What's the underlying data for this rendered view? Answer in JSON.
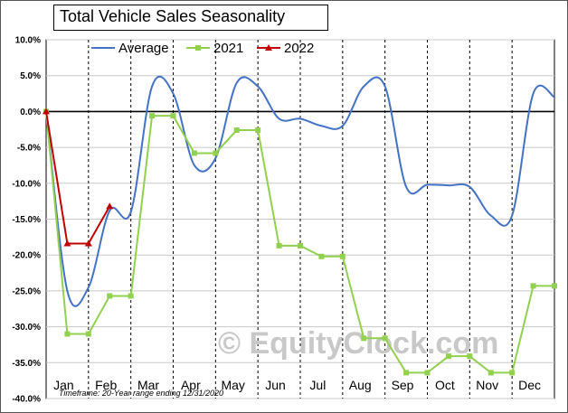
{
  "window": {
    "title": "Total Vehicle Sales Seasonality"
  },
  "chart_data": {
    "type": "line",
    "title": "Total Vehicle Sales Seasonality",
    "ylim": [
      -40,
      10
    ],
    "y_ticks": [
      "10.0%",
      "5.0%",
      "0.0%",
      "-5.0%",
      "-10.0%",
      "-15.0%",
      "-20.0%",
      "-25.0%",
      "-30.0%",
      "-35.0%",
      "-40.0%"
    ],
    "y_tick_values": [
      10,
      5,
      0,
      -5,
      -10,
      -15,
      -20,
      -25,
      -30,
      -35,
      -40
    ],
    "x_tick_labels": [
      "Jan",
      "Feb",
      "Mar",
      "Apr",
      "May",
      "Jun",
      "Jul",
      "Aug",
      "Sep",
      "Oct",
      "Nov",
      "Dec"
    ],
    "x_range": [
      0,
      12
    ],
    "gridlines": "vertical dashed at month boundaries, horizontal solid",
    "legend": "top",
    "series": [
      {
        "name": "Average",
        "color": "#4472c4",
        "smooth": true,
        "points": [
          [
            0.0,
            0.0
          ],
          [
            0.5,
            -25.0
          ],
          [
            1.0,
            -24.5
          ],
          [
            1.5,
            -13.8
          ],
          [
            2.0,
            -14.0
          ],
          [
            2.5,
            3.5
          ],
          [
            3.0,
            2.5
          ],
          [
            3.5,
            -7.5
          ],
          [
            4.0,
            -6.5
          ],
          [
            4.5,
            4.0
          ],
          [
            5.0,
            3.5
          ],
          [
            5.5,
            -1.0
          ],
          [
            6.0,
            -1.0
          ],
          [
            6.5,
            -2.0
          ],
          [
            7.0,
            -2.0
          ],
          [
            7.5,
            3.5
          ],
          [
            8.0,
            3.5
          ],
          [
            8.5,
            -10.5
          ],
          [
            9.0,
            -10.2
          ],
          [
            9.5,
            -10.3
          ],
          [
            10.0,
            -10.5
          ],
          [
            10.5,
            -14.5
          ],
          [
            11.0,
            -14.5
          ],
          [
            11.5,
            2.5
          ],
          [
            12.0,
            2.0
          ]
        ]
      },
      {
        "name": "2021",
        "color": "#92d050",
        "marker": "square",
        "points": [
          [
            0.0,
            0.0
          ],
          [
            0.5,
            -31.0
          ],
          [
            1.0,
            -31.0
          ],
          [
            1.5,
            -25.7
          ],
          [
            2.0,
            -25.7
          ],
          [
            2.5,
            -0.6
          ],
          [
            3.0,
            -0.6
          ],
          [
            3.5,
            -5.8
          ],
          [
            4.0,
            -5.8
          ],
          [
            4.5,
            -2.6
          ],
          [
            5.0,
            -2.6
          ],
          [
            5.5,
            -18.7
          ],
          [
            6.0,
            -18.7
          ],
          [
            6.5,
            -20.2
          ],
          [
            7.0,
            -20.2
          ],
          [
            7.5,
            -31.6
          ],
          [
            8.0,
            -31.6
          ],
          [
            8.5,
            -36.4
          ],
          [
            9.0,
            -36.4
          ],
          [
            9.5,
            -34.1
          ],
          [
            10.0,
            -34.1
          ],
          [
            10.5,
            -36.4
          ],
          [
            11.0,
            -36.4
          ],
          [
            11.5,
            -24.3
          ],
          [
            12.0,
            -24.3
          ]
        ]
      },
      {
        "name": "2022",
        "color": "#c00000",
        "marker": "triangle",
        "points": [
          [
            0.0,
            0.0
          ],
          [
            0.5,
            -18.4
          ],
          [
            1.0,
            -18.4
          ],
          [
            1.5,
            -13.2
          ]
        ]
      }
    ],
    "annotations": [
      "Timeframe: 20-Year range ending 12/31/2020"
    ],
    "watermark": "© EquityClock.com"
  }
}
